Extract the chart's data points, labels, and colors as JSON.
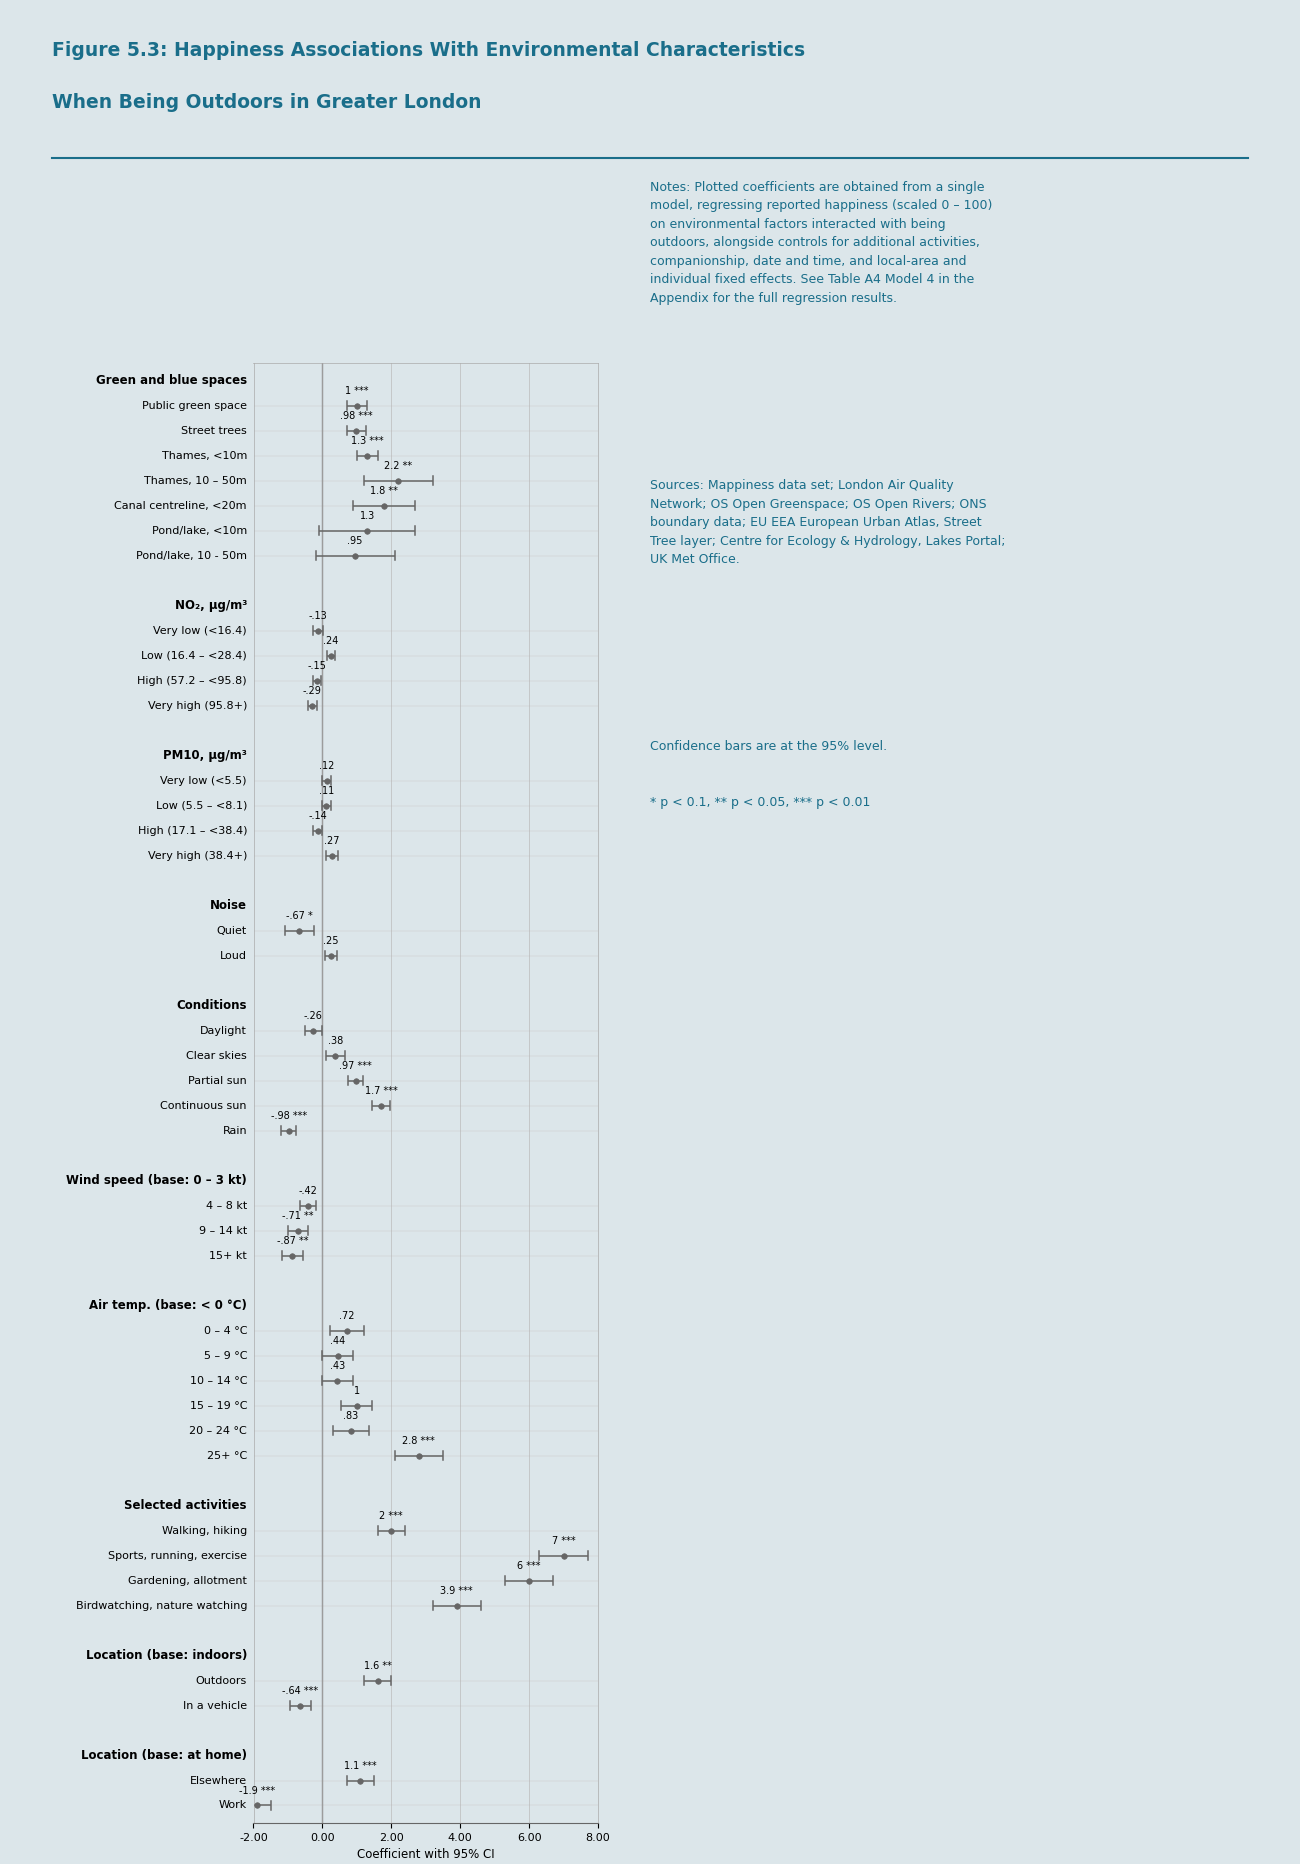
{
  "title_line1": "Figure 5.3: Happiness Associations With Environmental Characteristics",
  "title_line2": "When Being Outdoors in Greater London",
  "title_color": "#1a6e8a",
  "bg_color": "#dce6ea",
  "plot_bg_color": "#dce6ea",
  "text_color": "#1a6e8a",
  "xlabel": "Coefficient with 95% CI",
  "xlim": [
    -2.0,
    8.0
  ],
  "xticks": [
    -2.0,
    0.0,
    2.0,
    4.0,
    6.0,
    8.0
  ],
  "xtick_labels": [
    "-2.00",
    "0.00",
    "2.00",
    "4.00",
    "6.00",
    "8.00"
  ],
  "notes_text": "Notes: Plotted coefficients are obtained from a single\nmodel, regressing reported happiness (scaled 0 – 100)\non environmental factors interacted with being\noutdoors, alongside controls for additional activities,\ncompanionship, date and time, and local-area and\nindividual fixed effects. See Table A4 Model 4 in the\nAppendix for the full regression results.",
  "sources_text": "Sources: Mappiness data set; London Air Quality\nNetwork; OS Open Greenspace; OS Open Rivers; ONS\nboundary data; EU EEA European Urban Atlas, Street\nTree layer; Centre for Ecology & Hydrology, Lakes Portal;\nUK Met Office.",
  "ci_text": "Confidence bars are at the 95% level.",
  "sig_text": "* p < 0.1, ** p < 0.05, *** p < 0.01",
  "categories": [
    {
      "label": "Green and blue spaces",
      "coef": null,
      "ci_lo": null,
      "ci_hi": null,
      "is_header": true,
      "sig": ""
    },
    {
      "label": "Public green space",
      "coef": 1.0,
      "ci_lo": 0.7,
      "ci_hi": 1.3,
      "is_header": false,
      "sig": "***"
    },
    {
      "label": "Street trees",
      "coef": 0.98,
      "ci_lo": 0.7,
      "ci_hi": 1.26,
      "is_header": false,
      "sig": "***"
    },
    {
      "label": "Thames, <10m",
      "coef": 1.3,
      "ci_lo": 1.0,
      "ci_hi": 1.6,
      "is_header": false,
      "sig": "***"
    },
    {
      "label": "Thames, 10 – 50m",
      "coef": 2.2,
      "ci_lo": 1.2,
      "ci_hi": 3.2,
      "is_header": false,
      "sig": "**"
    },
    {
      "label": "Canal centreline, <20m",
      "coef": 1.8,
      "ci_lo": 0.9,
      "ci_hi": 2.7,
      "is_header": false,
      "sig": "**"
    },
    {
      "label": "Pond/lake, <10m",
      "coef": 1.3,
      "ci_lo": -0.1,
      "ci_hi": 2.7,
      "is_header": false,
      "sig": ""
    },
    {
      "label": "Pond/lake, 10 - 50m",
      "coef": 0.95,
      "ci_lo": -0.2,
      "ci_hi": 2.1,
      "is_header": false,
      "sig": ""
    },
    {
      "label": "",
      "coef": null,
      "ci_lo": null,
      "ci_hi": null,
      "is_header": false,
      "sig": ""
    },
    {
      "label": "NO₂, μg/m³",
      "coef": null,
      "ci_lo": null,
      "ci_hi": null,
      "is_header": true,
      "sig": ""
    },
    {
      "label": "Very low (<16.4)",
      "coef": -0.13,
      "ci_lo": -0.28,
      "ci_hi": 0.02,
      "is_header": false,
      "sig": ""
    },
    {
      "label": "Low (16.4 – <28.4)",
      "coef": 0.24,
      "ci_lo": 0.12,
      "ci_hi": 0.36,
      "is_header": false,
      "sig": ""
    },
    {
      "label": "High (57.2 – <95.8)",
      "coef": -0.15,
      "ci_lo": -0.27,
      "ci_hi": -0.03,
      "is_header": false,
      "sig": ""
    },
    {
      "label": "Very high (95.8+)",
      "coef": -0.29,
      "ci_lo": -0.42,
      "ci_hi": -0.16,
      "is_header": false,
      "sig": ""
    },
    {
      "label": "",
      "coef": null,
      "ci_lo": null,
      "ci_hi": null,
      "is_header": false,
      "sig": ""
    },
    {
      "label": "PM10, μg/m³",
      "coef": null,
      "ci_lo": null,
      "ci_hi": null,
      "is_header": true,
      "sig": ""
    },
    {
      "label": "Very low (<5.5)",
      "coef": 0.12,
      "ci_lo": -0.02,
      "ci_hi": 0.26,
      "is_header": false,
      "sig": ""
    },
    {
      "label": "Low (5.5 – <8.1)",
      "coef": 0.11,
      "ci_lo": -0.02,
      "ci_hi": 0.24,
      "is_header": false,
      "sig": ""
    },
    {
      "label": "High (17.1 – <38.4)",
      "coef": -0.14,
      "ci_lo": -0.28,
      "ci_hi": 0.0,
      "is_header": false,
      "sig": ""
    },
    {
      "label": "Very high (38.4+)",
      "coef": 0.27,
      "ci_lo": 0.1,
      "ci_hi": 0.44,
      "is_header": false,
      "sig": ""
    },
    {
      "label": "",
      "coef": null,
      "ci_lo": null,
      "ci_hi": null,
      "is_header": false,
      "sig": ""
    },
    {
      "label": "Noise",
      "coef": null,
      "ci_lo": null,
      "ci_hi": null,
      "is_header": true,
      "sig": ""
    },
    {
      "label": "Quiet",
      "coef": -0.67,
      "ci_lo": -1.1,
      "ci_hi": -0.24,
      "is_header": false,
      "sig": "*"
    },
    {
      "label": "Loud",
      "coef": 0.25,
      "ci_lo": 0.08,
      "ci_hi": 0.42,
      "is_header": false,
      "sig": ""
    },
    {
      "label": "",
      "coef": null,
      "ci_lo": null,
      "ci_hi": null,
      "is_header": false,
      "sig": ""
    },
    {
      "label": "Conditions",
      "coef": null,
      "ci_lo": null,
      "ci_hi": null,
      "is_header": true,
      "sig": ""
    },
    {
      "label": "Daylight",
      "coef": -0.26,
      "ci_lo": -0.5,
      "ci_hi": -0.02,
      "is_header": false,
      "sig": ""
    },
    {
      "label": "Clear skies",
      "coef": 0.38,
      "ci_lo": 0.1,
      "ci_hi": 0.66,
      "is_header": false,
      "sig": ""
    },
    {
      "label": "Partial sun",
      "coef": 0.97,
      "ci_lo": 0.75,
      "ci_hi": 1.19,
      "is_header": false,
      "sig": "***"
    },
    {
      "label": "Continuous sun",
      "coef": 1.7,
      "ci_lo": 1.45,
      "ci_hi": 1.95,
      "is_header": false,
      "sig": "***"
    },
    {
      "label": "Rain",
      "coef": -0.98,
      "ci_lo": -1.2,
      "ci_hi": -0.76,
      "is_header": false,
      "sig": "***"
    },
    {
      "label": "",
      "coef": null,
      "ci_lo": null,
      "ci_hi": null,
      "is_header": false,
      "sig": ""
    },
    {
      "label": "Wind speed (base: 0 – 3 kt)",
      "coef": null,
      "ci_lo": null,
      "ci_hi": null,
      "is_header": true,
      "sig": ""
    },
    {
      "label": "4 – 8 kt",
      "coef": -0.42,
      "ci_lo": -0.65,
      "ci_hi": -0.19,
      "is_header": false,
      "sig": ""
    },
    {
      "label": "9 – 14 kt",
      "coef": -0.71,
      "ci_lo": -1.0,
      "ci_hi": -0.42,
      "is_header": false,
      "sig": "**"
    },
    {
      "label": "15+ kt",
      "coef": -0.87,
      "ci_lo": -1.18,
      "ci_hi": -0.56,
      "is_header": false,
      "sig": "**"
    },
    {
      "label": "",
      "coef": null,
      "ci_lo": null,
      "ci_hi": null,
      "is_header": false,
      "sig": ""
    },
    {
      "label": "Air temp. (base: < 0 °C)",
      "coef": null,
      "ci_lo": null,
      "ci_hi": null,
      "is_header": true,
      "sig": ""
    },
    {
      "label": "0 – 4 °C",
      "coef": 0.72,
      "ci_lo": 0.22,
      "ci_hi": 1.22,
      "is_header": false,
      "sig": ""
    },
    {
      "label": "5 – 9 °C",
      "coef": 0.44,
      "ci_lo": 0.0,
      "ci_hi": 0.88,
      "is_header": false,
      "sig": ""
    },
    {
      "label": "10 – 14 °C",
      "coef": 0.43,
      "ci_lo": -0.02,
      "ci_hi": 0.88,
      "is_header": false,
      "sig": ""
    },
    {
      "label": "15 – 19 °C",
      "coef": 1.0,
      "ci_lo": 0.55,
      "ci_hi": 1.45,
      "is_header": false,
      "sig": ""
    },
    {
      "label": "20 – 24 °C",
      "coef": 0.83,
      "ci_lo": 0.3,
      "ci_hi": 1.36,
      "is_header": false,
      "sig": ""
    },
    {
      "label": "25+ °C",
      "coef": 2.8,
      "ci_lo": 2.1,
      "ci_hi": 3.5,
      "is_header": false,
      "sig": "***"
    },
    {
      "label": "",
      "coef": null,
      "ci_lo": null,
      "ci_hi": null,
      "is_header": false,
      "sig": ""
    },
    {
      "label": "Selected activities",
      "coef": null,
      "ci_lo": null,
      "ci_hi": null,
      "is_header": true,
      "sig": ""
    },
    {
      "label": "Walking, hiking",
      "coef": 2.0,
      "ci_lo": 1.6,
      "ci_hi": 2.4,
      "is_header": false,
      "sig": "***"
    },
    {
      "label": "Sports, running, exercise",
      "coef": 7.0,
      "ci_lo": 6.3,
      "ci_hi": 7.7,
      "is_header": false,
      "sig": "***"
    },
    {
      "label": "Gardening, allotment",
      "coef": 6.0,
      "ci_lo": 5.3,
      "ci_hi": 6.7,
      "is_header": false,
      "sig": "***"
    },
    {
      "label": "Birdwatching, nature watching",
      "coef": 3.9,
      "ci_lo": 3.2,
      "ci_hi": 4.6,
      "is_header": false,
      "sig": "***"
    },
    {
      "label": "",
      "coef": null,
      "ci_lo": null,
      "ci_hi": null,
      "is_header": false,
      "sig": ""
    },
    {
      "label": "Location (base: indoors)",
      "coef": null,
      "ci_lo": null,
      "ci_hi": null,
      "is_header": true,
      "sig": ""
    },
    {
      "label": "Outdoors",
      "coef": 1.6,
      "ci_lo": 1.2,
      "ci_hi": 2.0,
      "is_header": false,
      "sig": "**"
    },
    {
      "label": "In a vehicle",
      "coef": -0.64,
      "ci_lo": -0.95,
      "ci_hi": -0.33,
      "is_header": false,
      "sig": "***"
    },
    {
      "label": "",
      "coef": null,
      "ci_lo": null,
      "ci_hi": null,
      "is_header": false,
      "sig": ""
    },
    {
      "label": "Location (base: at home)",
      "coef": null,
      "ci_lo": null,
      "ci_hi": null,
      "is_header": true,
      "sig": ""
    },
    {
      "label": "Elsewhere",
      "coef": 1.1,
      "ci_lo": 0.7,
      "ci_hi": 1.5,
      "is_header": false,
      "sig": "***"
    },
    {
      "label": "Work",
      "coef": -1.9,
      "ci_lo": -2.3,
      "ci_hi": -1.5,
      "is_header": false,
      "sig": "***"
    }
  ],
  "dot_color": "#666666",
  "line_color": "#666666",
  "marker_size": 4,
  "cap_size": 0.18
}
